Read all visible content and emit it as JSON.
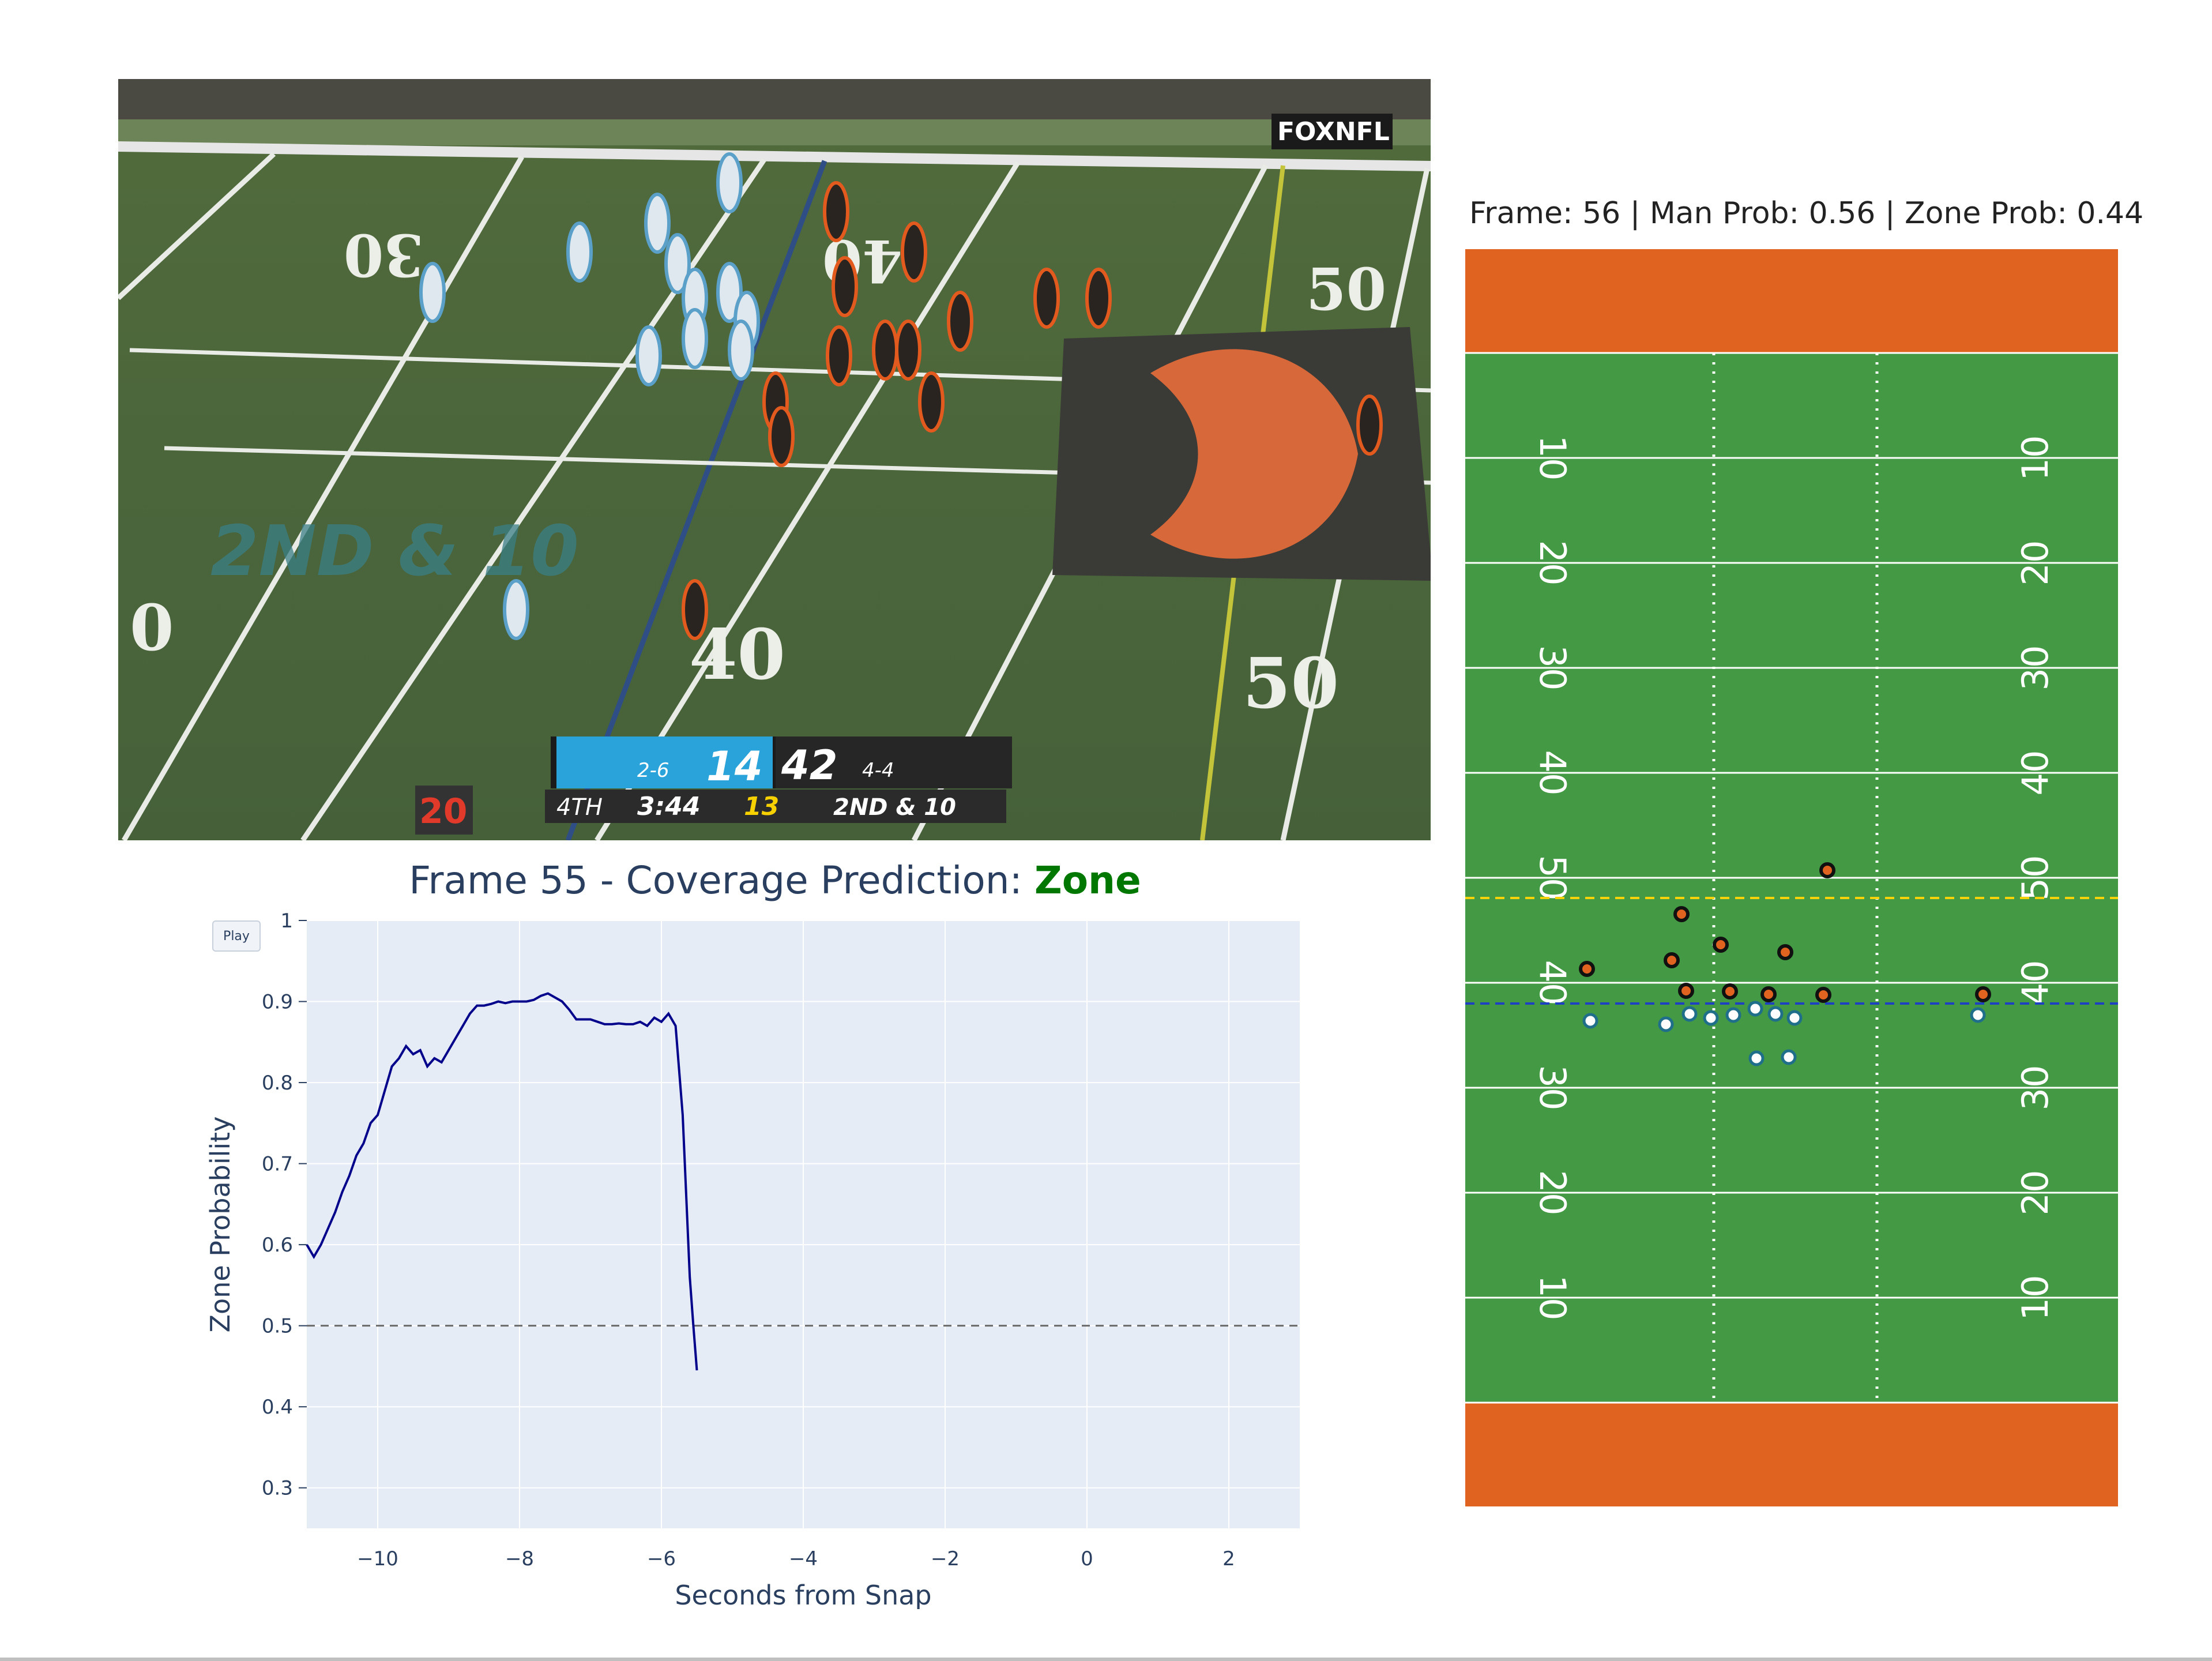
{
  "video": {
    "network_logo": "FOXNFL",
    "yard_numbers": [
      "30",
      "40",
      "50",
      "40",
      "50",
      "0"
    ],
    "down_graphic": "2ND & 10",
    "scorebug": {
      "home_record": "2-6",
      "home_score": "14",
      "away_score": "42",
      "away_record": "4-4",
      "quarter": "4TH",
      "clock": "3:44",
      "play_clock": "13",
      "down_distance": "2ND & 10"
    },
    "corner_badge": "20"
  },
  "chart_data": {
    "type": "line",
    "title_prefix": "Frame 55 - Coverage Prediction: ",
    "prediction": "Zone",
    "xlabel": "Seconds from Snap",
    "ylabel": "Zone Probability",
    "xlim": [
      -11,
      3
    ],
    "ylim": [
      0.25,
      1.0
    ],
    "xticks": [
      -10,
      -8,
      -6,
      -4,
      -2,
      0,
      2
    ],
    "xtick_labels": [
      "−10",
      "−8",
      "−6",
      "−4",
      "−2",
      "0",
      "2"
    ],
    "yticks": [
      0.3,
      0.4,
      0.5,
      0.6,
      0.7,
      0.8,
      0.9,
      1
    ],
    "ytick_labels": [
      "0.3",
      "0.4",
      "0.5",
      "0.6",
      "0.7",
      "0.8",
      "0.9",
      "1"
    ],
    "threshold": 0.5,
    "grid": true,
    "series": [
      {
        "color": "#00008b",
        "x": [
          -11.0,
          -10.9,
          -10.8,
          -10.7,
          -10.6,
          -10.5,
          -10.4,
          -10.3,
          -10.2,
          -10.1,
          -10.0,
          -9.9,
          -9.8,
          -9.7,
          -9.6,
          -9.5,
          -9.4,
          -9.3,
          -9.2,
          -9.1,
          -9.0,
          -8.9,
          -8.8,
          -8.7,
          -8.6,
          -8.5,
          -8.4,
          -8.3,
          -8.2,
          -8.1,
          -8.0,
          -7.9,
          -7.8,
          -7.7,
          -7.6,
          -7.5,
          -7.4,
          -7.3,
          -7.2,
          -7.1,
          -7.0,
          -6.9,
          -6.8,
          -6.7,
          -6.6,
          -6.5,
          -6.4,
          -6.3,
          -6.2,
          -6.1,
          -6.0,
          -5.9,
          -5.8,
          -5.7,
          -5.6,
          -5.55,
          -5.5
        ],
        "values": [
          0.6,
          0.585,
          0.6,
          0.62,
          0.64,
          0.665,
          0.685,
          0.71,
          0.725,
          0.75,
          0.76,
          0.79,
          0.82,
          0.83,
          0.845,
          0.835,
          0.84,
          0.82,
          0.83,
          0.825,
          0.84,
          0.855,
          0.87,
          0.885,
          0.895,
          0.895,
          0.897,
          0.9,
          0.898,
          0.9,
          0.9,
          0.9,
          0.902,
          0.907,
          0.91,
          0.905,
          0.9,
          0.89,
          0.878,
          0.878,
          0.878,
          0.875,
          0.872,
          0.872,
          0.873,
          0.872,
          0.872,
          0.875,
          0.87,
          0.88,
          0.875,
          0.885,
          0.87,
          0.76,
          0.56,
          0.5,
          0.445
        ]
      }
    ]
  },
  "field_panel": {
    "title": "Frame: 56 | Man Prob: 0.56 | Zone Prob: 0.44",
    "yard_labels": [
      "10",
      "20",
      "30",
      "40",
      "50",
      "40",
      "30",
      "20",
      "10"
    ],
    "colors": {
      "endzone": "#e0641f",
      "grass": "#449a44",
      "line": "#ffffff",
      "first_down": "#f5d20a",
      "line_of_scrimmage": "#1d3fc4",
      "defense": "#e0641f",
      "offense": "#ffffff"
    }
  }
}
